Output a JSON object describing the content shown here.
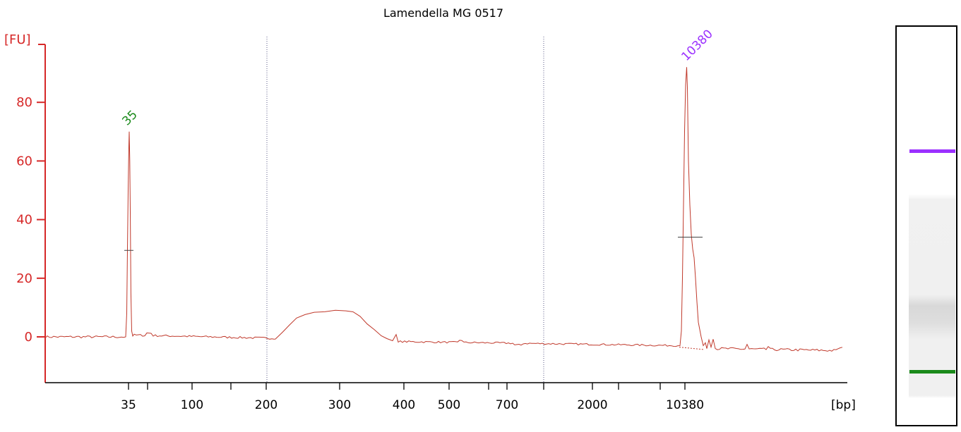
{
  "chart_data": {
    "type": "line",
    "title": "Lamendella MG 0517",
    "ylabel": "[FU]",
    "xlabel": "[bp]",
    "ylim": [
      -14,
      100
    ],
    "yticks": [
      0,
      20,
      40,
      60,
      80
    ],
    "yticks_text": [
      "0",
      "20",
      "40",
      "60",
      "80"
    ],
    "xticks_text": [
      "35",
      "100",
      "200",
      "300",
      "400",
      "500",
      "700",
      "2000",
      "10380"
    ],
    "grid": false,
    "series": [
      {
        "color": "#c0392b",
        "points": [
          [
            "35",
            0.0
          ],
          [
            "35",
            70.0
          ],
          [
            "100",
            0.0
          ],
          [
            "200",
            -0.5
          ],
          [
            "300",
            9.0
          ],
          [
            "400",
            -2.0
          ],
          [
            "700",
            -2.5
          ],
          [
            "2000",
            -3.5
          ],
          [
            "10380",
            92.0
          ],
          [
            "10380",
            -4.0
          ]
        ]
      }
    ],
    "peaks": [
      {
        "label": "35",
        "value": 70,
        "color": "#1a8a1a"
      },
      {
        "label": "10380",
        "value": 92,
        "color": "#9b30ff"
      }
    ],
    "gel_bands": [
      {
        "label": "10380",
        "color": "#9b30ff"
      },
      {
        "label": "35",
        "color": "#1a8a1a"
      }
    ]
  }
}
